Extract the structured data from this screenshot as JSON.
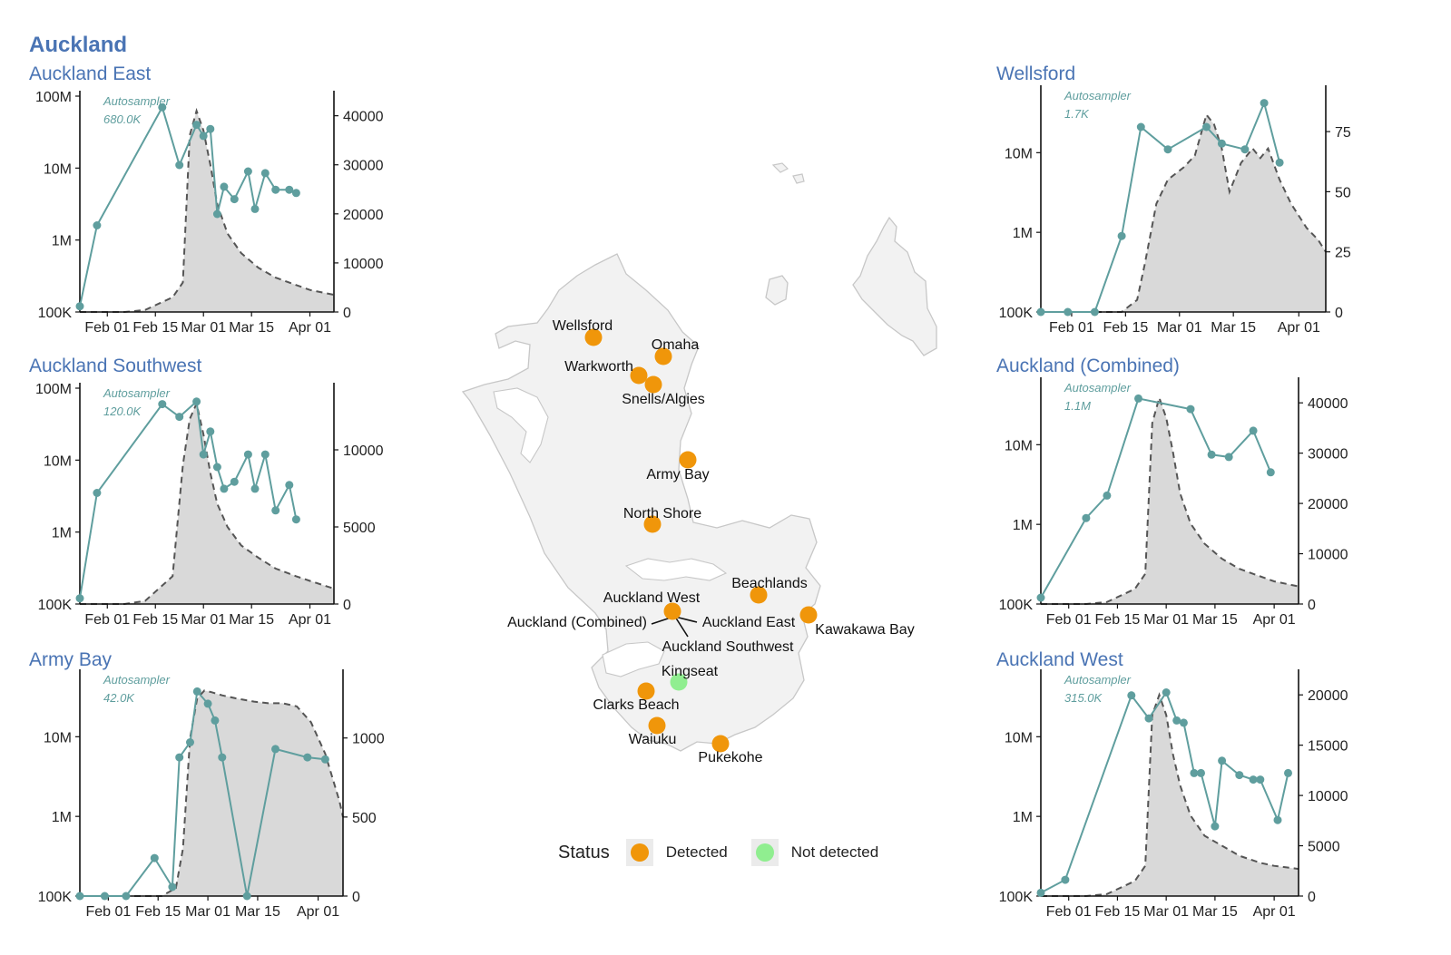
{
  "page": {
    "region_title": "Auckland"
  },
  "colors": {
    "title": "#4a74b4",
    "series_line": "#5f9e9e",
    "area_fill": "#d9d9d9",
    "dashed": "#555555",
    "detected": "#f0960a",
    "not_detected": "#90ee90",
    "map_land": "#f2f2f2",
    "map_border": "#c7c7c7"
  },
  "chart_data": [
    {
      "id": "auckland-east",
      "type": "line+area",
      "title": "Auckland East",
      "annotation": [
        "Autosampler",
        "680.0K"
      ],
      "x_tick_labels": [
        "Feb 01",
        "Feb 15",
        "Mar 01",
        "Mar 15",
        "Apr 01"
      ],
      "x_tick_days": [
        31,
        45,
        59,
        73,
        90
      ],
      "x_range": [
        23,
        97
      ],
      "left_axis": {
        "scale": "log",
        "ticks": [
          100000,
          1000000,
          10000000,
          100000000
        ],
        "labels": [
          "100K",
          "1M",
          "10M",
          "100M"
        ],
        "range": [
          100000,
          100000000
        ]
      },
      "right_axis": {
        "ticks": [
          0,
          10000,
          20000,
          30000,
          40000
        ],
        "labels": [
          "0",
          "10000",
          "20000",
          "30000",
          "40000"
        ],
        "range": [
          0,
          44000
        ]
      },
      "sample_series": {
        "name": "Autosampler",
        "x": [
          23,
          28,
          47,
          52,
          57,
          59,
          61,
          63,
          65,
          68,
          72,
          74,
          77,
          80,
          84,
          86
        ],
        "y": [
          120000,
          1600000,
          70000000,
          11000000,
          40000000,
          28000000,
          35000000,
          2300000,
          5500000,
          3700000,
          9000000,
          2700000,
          8500000,
          5000000,
          5000000,
          4500000
        ]
      },
      "case_series": {
        "x": [
          23,
          36,
          42,
          50,
          53,
          55,
          57,
          59,
          61,
          63,
          66,
          70,
          75,
          80,
          86,
          90,
          97
        ],
        "y": [
          0,
          0,
          400,
          3000,
          6000,
          36000,
          41000,
          37000,
          30000,
          22000,
          16000,
          12000,
          9000,
          7000,
          5500,
          4500,
          3500
        ]
      }
    },
    {
      "id": "auckland-southwest",
      "type": "line+area",
      "title": "Auckland Southwest",
      "annotation": [
        "Autosampler",
        "120.0K"
      ],
      "x_tick_labels": [
        "Feb 01",
        "Feb 15",
        "Mar 01",
        "Mar 15",
        "Apr 01"
      ],
      "x_tick_days": [
        31,
        45,
        59,
        73,
        90
      ],
      "x_range": [
        23,
        97
      ],
      "left_axis": {
        "scale": "log",
        "ticks": [
          100000,
          1000000,
          10000000,
          100000000
        ],
        "labels": [
          "100K",
          "1M",
          "10M",
          "100M"
        ],
        "range": [
          100000,
          100000000
        ]
      },
      "right_axis": {
        "ticks": [
          0,
          5000,
          10000
        ],
        "labels": [
          "0",
          "5000",
          "10000"
        ],
        "range": [
          0,
          14000
        ]
      },
      "sample_series": {
        "name": "Autosampler",
        "x": [
          23,
          28,
          47,
          52,
          57,
          59,
          61,
          63,
          65,
          68,
          72,
          74,
          77,
          80,
          84,
          86
        ],
        "y": [
          120000,
          3500000,
          60000000,
          40000000,
          65000000,
          12000000,
          25000000,
          8000000,
          4000000,
          5000000,
          12000000,
          4000000,
          12000000,
          2000000,
          4500000,
          1500000
        ]
      },
      "case_series": {
        "x": [
          23,
          36,
          42,
          50,
          53,
          55,
          57,
          59,
          61,
          63,
          66,
          70,
          75,
          80,
          86,
          90,
          97
        ],
        "y": [
          0,
          0,
          200,
          1800,
          9000,
          12000,
          13000,
          11000,
          8500,
          6500,
          5000,
          3800,
          3000,
          2300,
          1800,
          1500,
          1000
        ]
      }
    },
    {
      "id": "army-bay",
      "type": "line+area",
      "title": "Army Bay",
      "annotation": [
        "Autosampler",
        "42.0K"
      ],
      "x_tick_labels": [
        "Feb 01",
        "Feb 15",
        "Mar 01",
        "Mar 15",
        "Apr 01"
      ],
      "x_tick_days": [
        31,
        45,
        59,
        73,
        90
      ],
      "x_range": [
        23,
        97
      ],
      "left_axis": {
        "scale": "log",
        "ticks": [
          100000,
          1000000,
          10000000
        ],
        "labels": [
          "100K",
          "1M",
          "10M"
        ],
        "range": [
          100000,
          60000000
        ]
      },
      "right_axis": {
        "ticks": [
          0,
          500,
          1000
        ],
        "labels": [
          "0",
          "500",
          "1000"
        ],
        "range": [
          0,
          1400
        ]
      },
      "sample_series": {
        "name": "Autosampler",
        "x": [
          23,
          30,
          36,
          44,
          49,
          51,
          54,
          56,
          59,
          61,
          63,
          70,
          78,
          87,
          92
        ],
        "y": [
          100000,
          100000,
          100000,
          300000,
          130000,
          5500000,
          8500000,
          37000000,
          26000000,
          16000000,
          5500000,
          100000,
          7000000,
          5500000,
          5200000
        ]
      },
      "case_series": {
        "x": [
          23,
          36,
          46,
          50,
          52,
          54,
          56,
          58,
          60,
          63,
          67,
          72,
          76,
          80,
          84,
          88,
          92,
          96,
          97
        ],
        "y": [
          0,
          0,
          0,
          50,
          300,
          1000,
          1250,
          1300,
          1290,
          1270,
          1250,
          1230,
          1220,
          1220,
          1200,
          1100,
          900,
          600,
          500
        ]
      }
    },
    {
      "id": "wellsford",
      "type": "line+area",
      "title": "Wellsford",
      "annotation": [
        "Autosampler",
        "1.7K"
      ],
      "x_tick_labels": [
        "Feb 01",
        "Feb 15",
        "Mar 01",
        "Mar 15",
        "Apr 01"
      ],
      "x_tick_days": [
        31,
        45,
        59,
        73,
        90
      ],
      "x_range": [
        23,
        97
      ],
      "left_axis": {
        "scale": "log",
        "ticks": [
          100000,
          1000000,
          10000000
        ],
        "labels": [
          "100K",
          "1M",
          "10M"
        ],
        "range": [
          100000,
          60000000
        ]
      },
      "right_axis": {
        "ticks": [
          0,
          25,
          50,
          75
        ],
        "labels": [
          "0",
          "25",
          "50",
          "75"
        ],
        "range": [
          0,
          92
        ]
      },
      "sample_series": {
        "name": "Autosampler",
        "x": [
          23,
          30,
          37,
          44,
          49,
          56,
          66,
          70,
          76,
          81,
          85
        ],
        "y": [
          100000,
          100000,
          100000,
          900000,
          21000000,
          11000000,
          21000000,
          13000000,
          11000000,
          42000000,
          7500000
        ]
      },
      "case_series": {
        "x": [
          23,
          36,
          44,
          48,
          50,
          53,
          56,
          60,
          63,
          66,
          68,
          70,
          72,
          75,
          78,
          80,
          82,
          85,
          88,
          92,
          95,
          97
        ],
        "y": [
          0,
          0,
          0,
          5,
          20,
          45,
          55,
          60,
          65,
          82,
          78,
          68,
          50,
          62,
          68,
          64,
          68,
          55,
          45,
          35,
          30,
          25
        ]
      }
    },
    {
      "id": "auckland-combined",
      "type": "line+area",
      "title": "Auckland (Combined)",
      "annotation": [
        "Autosampler",
        "1.1M"
      ],
      "x_tick_labels": [
        "Feb 01",
        "Feb 15",
        "Mar 01",
        "Mar 15",
        "Apr 01"
      ],
      "x_tick_days": [
        31,
        45,
        59,
        73,
        90
      ],
      "x_range": [
        23,
        97
      ],
      "left_axis": {
        "scale": "log",
        "ticks": [
          100000,
          1000000,
          10000000
        ],
        "labels": [
          "100K",
          "1M",
          "10M"
        ],
        "range": [
          100000,
          60000000
        ]
      },
      "right_axis": {
        "ticks": [
          0,
          10000,
          20000,
          30000,
          40000
        ],
        "labels": [
          "0",
          "10000",
          "20000",
          "30000",
          "40000"
        ],
        "range": [
          0,
          44000
        ]
      },
      "sample_series": {
        "name": "Autosampler",
        "x": [
          23,
          36,
          42,
          51,
          66,
          72,
          77,
          84,
          89
        ],
        "y": [
          120000,
          1200000,
          2300000,
          38000000,
          28000000,
          7500000,
          7000000,
          15000000,
          4500000
        ]
      },
      "case_series": {
        "x": [
          23,
          36,
          42,
          50,
          53,
          55,
          57,
          59,
          61,
          63,
          66,
          70,
          75,
          80,
          86,
          90,
          97
        ],
        "y": [
          0,
          0,
          400,
          3000,
          6000,
          36000,
          41000,
          37000,
          30000,
          22000,
          16000,
          12000,
          9000,
          7000,
          5500,
          4500,
          3500
        ]
      }
    },
    {
      "id": "auckland-west",
      "type": "line+area",
      "title": "Auckland West",
      "annotation": [
        "Autosampler",
        "315.0K"
      ],
      "x_tick_labels": [
        "Feb 01",
        "Feb 15",
        "Mar 01",
        "Mar 15",
        "Apr 01"
      ],
      "x_tick_days": [
        31,
        45,
        59,
        73,
        90
      ],
      "x_range": [
        23,
        97
      ],
      "left_axis": {
        "scale": "log",
        "ticks": [
          100000,
          1000000,
          10000000
        ],
        "labels": [
          "100K",
          "1M",
          "10M"
        ],
        "range": [
          100000,
          60000000
        ]
      },
      "right_axis": {
        "ticks": [
          0,
          5000,
          10000,
          15000,
          20000
        ],
        "labels": [
          "0",
          "5000",
          "10000",
          "15000",
          "20000"
        ],
        "range": [
          0,
          22000
        ]
      },
      "sample_series": {
        "name": "Autosampler",
        "x": [
          23,
          30,
          49,
          54,
          59,
          62,
          64,
          67,
          69,
          73,
          75,
          80,
          84,
          86,
          91,
          94
        ],
        "y": [
          110000,
          160000,
          33000000,
          17000000,
          36000000,
          16000000,
          15000000,
          3500000,
          3500000,
          750000,
          5000000,
          3300000,
          2900000,
          2900000,
          900000,
          3500000
        ]
      },
      "case_series": {
        "x": [
          23,
          36,
          42,
          50,
          53,
          55,
          57,
          59,
          61,
          63,
          66,
          70,
          75,
          80,
          86,
          90,
          97
        ],
        "y": [
          0,
          0,
          200,
          1500,
          3000,
          18000,
          20000,
          18000,
          14000,
          11000,
          8000,
          6000,
          5000,
          4000,
          3300,
          3000,
          2700
        ]
      }
    }
  ],
  "map": {
    "sites": [
      {
        "name": "Wellsford",
        "status": "Detected",
        "label": "Wellsford"
      },
      {
        "name": "Omaha",
        "status": "Detected",
        "label": "Omaha"
      },
      {
        "name": "Warkworth",
        "status": "Detected",
        "label": "Warkworth"
      },
      {
        "name": "Snells/Algies",
        "status": "Detected",
        "label": "Snells/Algies"
      },
      {
        "name": "Army Bay",
        "status": "Detected",
        "label": "Army Bay"
      },
      {
        "name": "North Shore",
        "status": "Detected",
        "label": "North Shore"
      },
      {
        "name": "Beachlands",
        "status": "Detected",
        "label": "Beachlands"
      },
      {
        "name": "Auckland West",
        "status": "Detected",
        "label": "Auckland West"
      },
      {
        "name": "Auckland (Combined)",
        "status": "Detected",
        "label": "Auckland (Combined)"
      },
      {
        "name": "Auckland East",
        "status": "Detected",
        "label": "Auckland East"
      },
      {
        "name": "Kawakawa Bay",
        "status": "Detected",
        "label": "Kawakawa Bay"
      },
      {
        "name": "Auckland Southwest",
        "status": "Detected",
        "label": "Auckland Southwest"
      },
      {
        "name": "Kingseat",
        "status": "Not detected",
        "label": "Kingseat"
      },
      {
        "name": "Clarks Beach",
        "status": "Detected",
        "label": "Clarks Beach"
      },
      {
        "name": "Waiuku",
        "status": "Detected",
        "label": "Waiuku"
      },
      {
        "name": "Pukekohe",
        "status": "Detected",
        "label": "Pukekohe"
      }
    ],
    "legend": {
      "title": "Status",
      "detected": "Detected",
      "not_detected": "Not detected"
    }
  }
}
